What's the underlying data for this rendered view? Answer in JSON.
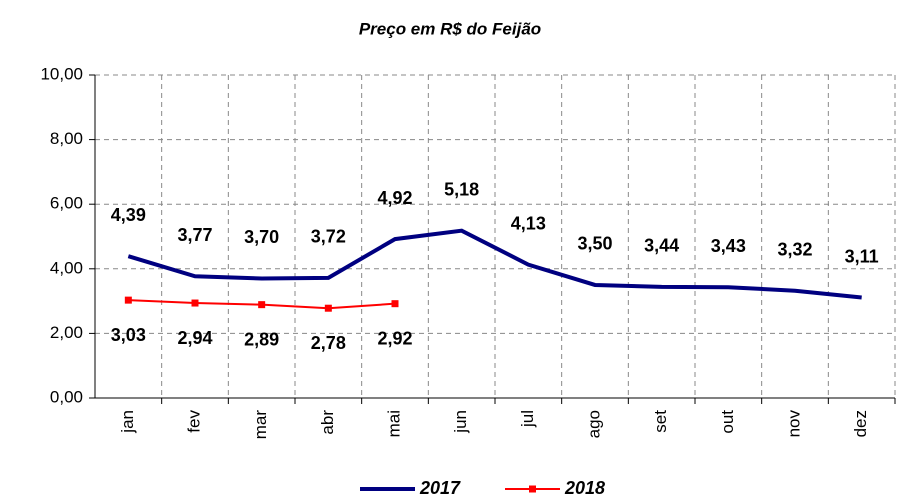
{
  "chart_data": {
    "type": "line",
    "title": "Preço em R$ do Feijão",
    "categories": [
      "jan",
      "fev",
      "mar",
      "abr",
      "mai",
      "jun",
      "jul",
      "ago",
      "set",
      "out",
      "nov",
      "dez"
    ],
    "series": [
      {
        "name": "2017",
        "color": "#000080",
        "values": [
          4.39,
          3.77,
          3.7,
          3.72,
          4.92,
          5.18,
          4.13,
          3.5,
          3.44,
          3.43,
          3.32,
          3.11
        ],
        "value_labels": [
          "4,39",
          "3,77",
          "3,70",
          "3,72",
          "4,92",
          "5,18",
          "4,13",
          "3,50",
          "3,44",
          "3,43",
          "3,32",
          "3,11"
        ]
      },
      {
        "name": "2018",
        "color": "#ff0000",
        "values": [
          3.03,
          2.94,
          2.89,
          2.78,
          2.92,
          null,
          null,
          null,
          null,
          null,
          null,
          null
        ],
        "value_labels": [
          "3,03",
          "2,94",
          "2,89",
          "2,78",
          "2,92",
          null,
          null,
          null,
          null,
          null,
          null,
          null
        ]
      }
    ],
    "ylim": [
      0,
      10
    ],
    "yticks": [
      {
        "value": 0,
        "label": "0,00"
      },
      {
        "value": 2,
        "label": "2,00"
      },
      {
        "value": 4,
        "label": "4,00"
      },
      {
        "value": 6,
        "label": "6,00"
      },
      {
        "value": 8,
        "label": "8,00"
      },
      {
        "value": 10,
        "label": "10,00"
      }
    ],
    "grid": true,
    "legend": "bottom"
  }
}
